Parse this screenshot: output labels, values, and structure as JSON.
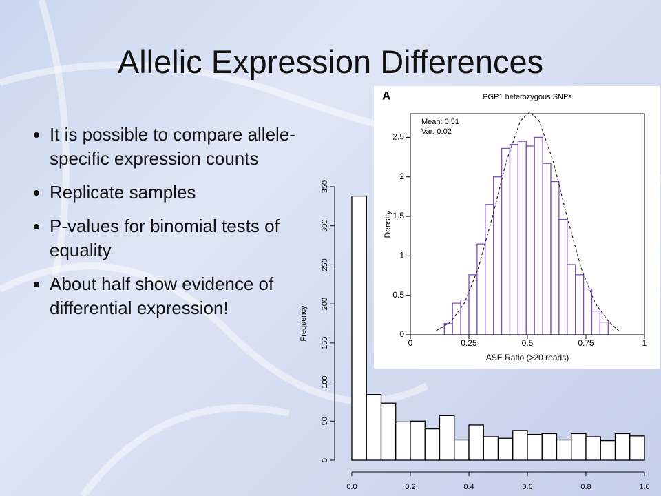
{
  "title": "Allelic Expression Differences",
  "bullets": [
    "It is possible to compare allele-specific expression counts",
    "Replicate samples",
    "P-values for binomial tests of equality",
    "About half show evidence of differential expression!"
  ],
  "chart_data": [
    {
      "type": "histogram",
      "y_label": "Frequency",
      "box": false,
      "bins": [
        0,
        0.05,
        0.1,
        0.15,
        0.2,
        0.25,
        0.3,
        0.35,
        0.4,
        0.45,
        0.5,
        0.55,
        0.6,
        0.65,
        0.7,
        0.75,
        0.8,
        0.85,
        0.9,
        0.95,
        1
      ],
      "values": [
        338,
        84,
        73,
        49,
        50,
        40,
        57,
        26,
        45,
        30,
        28,
        38,
        33,
        34,
        26,
        34,
        30,
        25,
        34,
        31
      ],
      "color": "#000000",
      "fill": "#ffffff",
      "xlim": [
        0,
        1
      ],
      "xticks": [
        {
          "value": 0,
          "label": "0.0"
        },
        0.2,
        0.4,
        0.6,
        0.8,
        {
          "value": 1,
          "label": "1.0"
        }
      ],
      "ylim": [
        0,
        350
      ],
      "yticks": [
        0,
        50,
        100,
        150,
        200,
        250,
        300,
        350
      ]
    },
    {
      "type": "histogram",
      "panel": "A",
      "title": "PGP1 heterozygous SNPs",
      "annotations": [
        "Mean: 0.51",
        "Var: 0.02"
      ],
      "x_label": "ASE Ratio (>20 reads)",
      "y_label": "Density",
      "box": true,
      "bins": [
        0.145,
        0.18,
        0.215,
        0.25,
        0.285,
        0.32,
        0.355,
        0.39,
        0.425,
        0.46,
        0.495,
        0.53,
        0.565,
        0.6,
        0.635,
        0.67,
        0.705,
        0.74,
        0.775,
        0.81,
        0.845
      ],
      "values": [
        0.14,
        0.4,
        0.44,
        0.76,
        1.15,
        1.65,
        2.0,
        2.36,
        2.41,
        2.45,
        2.39,
        2.5,
        2.17,
        1.94,
        1.46,
        0.89,
        0.76,
        0.58,
        0.3,
        0.16
      ],
      "color": "#7b4fc0",
      "fill": "#ffffff",
      "curve": {
        "x": [
          0.11,
          0.17,
          0.23,
          0.29,
          0.35,
          0.41,
          0.47,
          0.51,
          0.55,
          0.61,
          0.67,
          0.73,
          0.79,
          0.85,
          0.89
        ],
        "y": [
          0.052,
          0.157,
          0.397,
          0.841,
          1.487,
          2.196,
          2.71,
          2.82,
          2.71,
          2.196,
          1.487,
          0.841,
          0.397,
          0.157,
          0.052
        ]
      },
      "xlim": [
        0,
        1
      ],
      "xticks": [
        0,
        0.25,
        0.5,
        0.75,
        1
      ],
      "ylim": [
        0,
        2.8
      ],
      "yticks": [
        0,
        0.5,
        1,
        1.5,
        2,
        2.5
      ]
    }
  ]
}
